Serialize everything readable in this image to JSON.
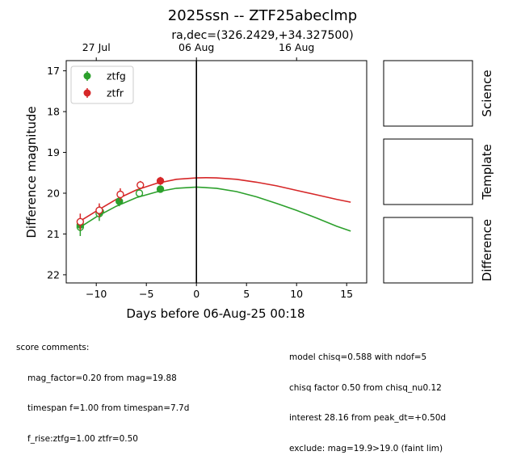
{
  "chart_data": {
    "type": "scatter",
    "title": "2025ssn -- ZTF25abeclmp",
    "subtitle": "ra,dec=(326.2429,+34.327500)",
    "xlabel": "Days before 06-Aug-25 00:18",
    "ylabel": "Difference magnitude",
    "xlim": [
      -13,
      17
    ],
    "ylim": [
      22.2,
      16.75
    ],
    "y_inverted": true,
    "x_ticks": [
      -10,
      -5,
      0,
      5,
      10,
      15
    ],
    "y_ticks": [
      17,
      18,
      19,
      20,
      21,
      22
    ],
    "top_axis": {
      "ticks": [
        {
          "x": -10,
          "label": "27 Jul"
        },
        {
          "x": 0,
          "label": "06 Aug"
        },
        {
          "x": 10,
          "label": "16 Aug"
        }
      ]
    },
    "vline_x": 0,
    "legend": {
      "placement": "top-left",
      "entries": [
        "ztfg",
        "ztfr"
      ]
    },
    "series": [
      {
        "name": "ztfg",
        "color": "#2ca02c",
        "points": [
          {
            "x": -11.6,
            "y": 20.83,
            "err": 0.22,
            "filled": false
          },
          {
            "x": -11.6,
            "y": 20.78,
            "err": 0.15,
            "filled": true
          },
          {
            "x": -9.7,
            "y": 20.5,
            "err": 0.18,
            "filled": false
          },
          {
            "x": -9.6,
            "y": 20.45,
            "err": 0.12,
            "filled": true
          },
          {
            "x": -7.7,
            "y": 20.2,
            "err": 0.12,
            "filled": true
          },
          {
            "x": -5.7,
            "y": 20.0,
            "err": 0.1,
            "filled": false
          },
          {
            "x": -3.6,
            "y": 19.9,
            "err": 0.08,
            "filled": true
          }
        ],
        "model": {
          "x": [
            -11.6,
            -10,
            -8,
            -6,
            -4,
            -2,
            0,
            2,
            4,
            6,
            8,
            10,
            12,
            14,
            15.4
          ],
          "y": [
            20.83,
            20.58,
            20.32,
            20.11,
            19.97,
            19.88,
            19.85,
            19.88,
            19.96,
            20.09,
            20.25,
            20.42,
            20.61,
            20.81,
            20.93
          ]
        }
      },
      {
        "name": "ztfr",
        "color": "#d62728",
        "points": [
          {
            "x": -11.6,
            "y": 20.7,
            "err": 0.2,
            "filled": false
          },
          {
            "x": -9.7,
            "y": 20.42,
            "err": 0.17,
            "filled": false
          },
          {
            "x": -7.6,
            "y": 20.03,
            "err": 0.15,
            "filled": false
          },
          {
            "x": -5.6,
            "y": 19.8,
            "err": 0.1,
            "filled": false
          },
          {
            "x": -3.6,
            "y": 19.7,
            "err": 0.1,
            "filled": true
          }
        ],
        "model": {
          "x": [
            -11.6,
            -10,
            -8,
            -6,
            -4,
            -2,
            0,
            1,
            2,
            4,
            6,
            8,
            10,
            12,
            14,
            15.4
          ],
          "y": [
            20.68,
            20.44,
            20.15,
            19.92,
            19.76,
            19.66,
            19.625,
            19.62,
            19.625,
            19.66,
            19.73,
            19.82,
            19.93,
            20.04,
            20.15,
            20.22
          ]
        }
      }
    ]
  },
  "side_panels": [
    "Science",
    "Template",
    "Difference"
  ],
  "comments_left": {
    "heading": "score comments:",
    "lines": [
      "mag_factor=0.20 from mag=19.88",
      "timespan f=1.00 from timespan=7.7d",
      "f_rise:ztfg=1.00 ztfr=0.50"
    ]
  },
  "comments_right": {
    "lines": [
      "model chisq=0.588 with ndof=5",
      "chisq factor 0.50 from chisq_nu0.12",
      "interest 28.16 from peak_dt=+0.50d",
      "exclude: mag=19.9>19.0 (faint lim)"
    ]
  }
}
